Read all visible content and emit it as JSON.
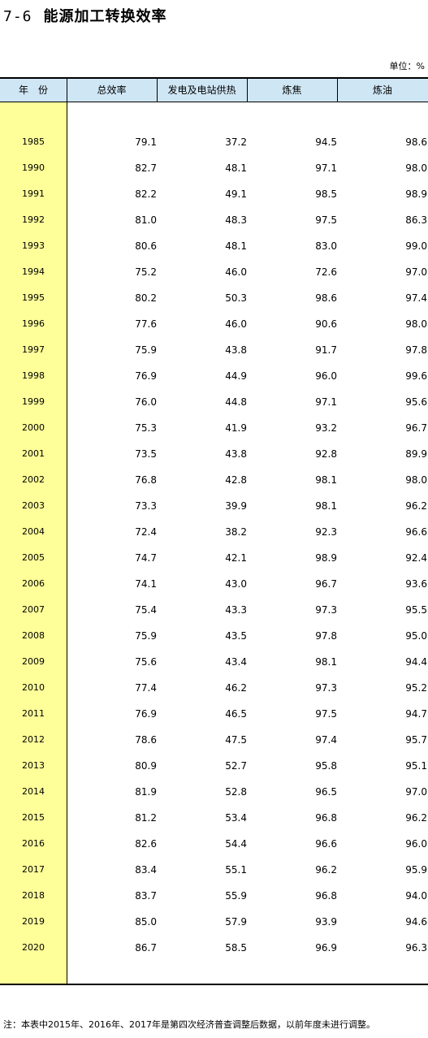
{
  "title": {
    "number": "7-6",
    "text": "能源加工转换效率"
  },
  "unit": "单位：%",
  "columns": [
    "年　份",
    "总效率",
    "发电及电站供热",
    "炼焦",
    "炼油"
  ],
  "rows": [
    [
      "1985",
      "79.1",
      "37.2",
      "94.5",
      "98.6"
    ],
    [
      "1990",
      "82.7",
      "48.1",
      "97.1",
      "98.0"
    ],
    [
      "1991",
      "82.2",
      "49.1",
      "98.5",
      "98.9"
    ],
    [
      "1992",
      "81.0",
      "48.3",
      "97.5",
      "86.3"
    ],
    [
      "1993",
      "80.6",
      "48.1",
      "83.0",
      "99.0"
    ],
    [
      "1994",
      "75.2",
      "46.0",
      "72.6",
      "97.0"
    ],
    [
      "1995",
      "80.2",
      "50.3",
      "98.6",
      "97.4"
    ],
    [
      "1996",
      "77.6",
      "46.0",
      "90.6",
      "98.0"
    ],
    [
      "1997",
      "75.9",
      "43.8",
      "91.7",
      "97.8"
    ],
    [
      "1998",
      "76.9",
      "44.9",
      "96.0",
      "99.6"
    ],
    [
      "1999",
      "76.0",
      "44.8",
      "97.1",
      "95.6"
    ],
    [
      "2000",
      "75.3",
      "41.9",
      "93.2",
      "96.7"
    ],
    [
      "2001",
      "73.5",
      "43.8",
      "92.8",
      "89.9"
    ],
    [
      "2002",
      "76.8",
      "42.8",
      "98.1",
      "98.0"
    ],
    [
      "2003",
      "73.3",
      "39.9",
      "98.1",
      "96.2"
    ],
    [
      "2004",
      "72.4",
      "38.2",
      "92.3",
      "96.6"
    ],
    [
      "2005",
      "74.7",
      "42.1",
      "98.9",
      "92.4"
    ],
    [
      "2006",
      "74.1",
      "43.0",
      "96.7",
      "93.6"
    ],
    [
      "2007",
      "75.4",
      "43.3",
      "97.3",
      "95.5"
    ],
    [
      "2008",
      "75.9",
      "43.5",
      "97.8",
      "95.0"
    ],
    [
      "2009",
      "75.6",
      "43.4",
      "98.1",
      "94.4"
    ],
    [
      "2010",
      "77.4",
      "46.2",
      "97.3",
      "95.2"
    ],
    [
      "2011",
      "76.9",
      "46.5",
      "97.5",
      "94.7"
    ],
    [
      "2012",
      "78.6",
      "47.5",
      "97.4",
      "95.7"
    ],
    [
      "2013",
      "80.9",
      "52.7",
      "95.8",
      "95.1"
    ],
    [
      "2014",
      "81.9",
      "52.8",
      "96.5",
      "97.0"
    ],
    [
      "2015",
      "81.2",
      "53.4",
      "96.8",
      "96.2"
    ],
    [
      "2016",
      "82.6",
      "54.4",
      "96.6",
      "96.0"
    ],
    [
      "2017",
      "83.4",
      "55.1",
      "96.2",
      "95.9"
    ],
    [
      "2018",
      "83.7",
      "55.9",
      "96.8",
      "94.0"
    ],
    [
      "2019",
      "85.0",
      "57.9",
      "93.9",
      "94.6"
    ],
    [
      "2020",
      "86.7",
      "58.5",
      "96.9",
      "96.3"
    ]
  ],
  "note": "注：本表中2015年、2016年、2017年是第四次经济普查调整后数据，以前年度未进行调整。",
  "colors": {
    "header_bg": "#cfe6f5",
    "year_bg": "#ffff99",
    "border": "#000000"
  }
}
